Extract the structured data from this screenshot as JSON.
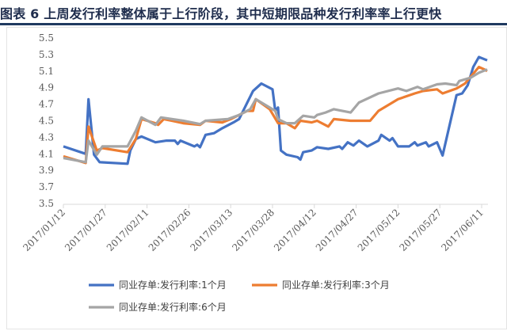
{
  "title": "图表 6 上周发行利率整体属于上行阶段，其中短期限品种发行利率率上行更快",
  "chart_data": {
    "type": "line",
    "title": "图表 6 上周发行利率整体属于上行阶段，其中短期限品种发行利率率上行更快",
    "xlabel": "",
    "ylabel": "",
    "x_unit": "days since 2017/01/12",
    "xlim": [
      0,
      152
    ],
    "ylim": [
      3.5,
      5.5
    ],
    "yticks": [
      "3.5",
      "3.7",
      "3.9",
      "4.1",
      "4.3",
      "4.5",
      "4.7",
      "4.9",
      "5.1",
      "5.3",
      "5.5"
    ],
    "xticks": [
      {
        "day": 0,
        "label": "2017/01/12"
      },
      {
        "day": 15,
        "label": "2017/01/27"
      },
      {
        "day": 30,
        "label": "2017/02/11"
      },
      {
        "day": 45,
        "label": "2017/02/26"
      },
      {
        "day": 60,
        "label": "2017/03/13"
      },
      {
        "day": 75,
        "label": "2017/03/28"
      },
      {
        "day": 90,
        "label": "2017/04/12"
      },
      {
        "day": 105,
        "label": "2017/04/27"
      },
      {
        "day": 120,
        "label": "2017/05/12"
      },
      {
        "day": 135,
        "label": "2017/05/27"
      },
      {
        "day": 150,
        "label": "2017/06/11"
      }
    ],
    "grid": false,
    "legend_position": "bottom",
    "series": [
      {
        "name": "同业存单:发行利率:1个月",
        "color": "#4472c4",
        "points": [
          [
            0,
            4.19
          ],
          [
            8,
            4.1
          ],
          [
            9,
            4.76
          ],
          [
            11,
            4.09
          ],
          [
            13,
            4.0
          ],
          [
            23,
            3.98
          ],
          [
            24,
            4.14
          ],
          [
            26,
            4.28
          ],
          [
            28,
            4.31
          ],
          [
            33,
            4.24
          ],
          [
            37,
            4.26
          ],
          [
            40,
            4.26
          ],
          [
            41,
            4.22
          ],
          [
            42,
            4.26
          ],
          [
            47,
            4.19
          ],
          [
            48,
            4.21
          ],
          [
            49,
            4.18
          ],
          [
            51,
            4.33
          ],
          [
            54,
            4.35
          ],
          [
            57,
            4.41
          ],
          [
            61,
            4.48
          ],
          [
            63,
            4.52
          ],
          [
            68,
            4.86
          ],
          [
            71,
            4.95
          ],
          [
            75,
            4.88
          ],
          [
            76,
            4.62
          ],
          [
            77,
            4.66
          ],
          [
            78,
            4.14
          ],
          [
            80,
            4.09
          ],
          [
            84,
            4.06
          ],
          [
            85,
            4.03
          ],
          [
            86,
            4.12
          ],
          [
            89,
            4.14
          ],
          [
            91,
            4.18
          ],
          [
            95,
            4.16
          ],
          [
            99,
            4.19
          ],
          [
            100,
            4.16
          ],
          [
            102,
            4.24
          ],
          [
            104,
            4.2
          ],
          [
            106,
            4.26
          ],
          [
            109,
            4.19
          ],
          [
            113,
            4.26
          ],
          [
            114,
            4.33
          ],
          [
            117,
            4.26
          ],
          [
            118,
            4.29
          ],
          [
            120,
            4.19
          ],
          [
            124,
            4.19
          ],
          [
            126,
            4.24
          ],
          [
            127,
            4.2
          ],
          [
            130,
            4.24
          ],
          [
            131,
            4.19
          ],
          [
            134,
            4.24
          ],
          [
            136,
            4.08
          ],
          [
            139,
            4.52
          ],
          [
            141,
            4.81
          ],
          [
            143,
            4.83
          ],
          [
            145,
            4.93
          ],
          [
            147,
            5.15
          ],
          [
            149,
            5.27
          ],
          [
            152,
            5.23
          ]
        ]
      },
      {
        "name": "同业存单:发行利率:3个月",
        "color": "#ed7d31",
        "points": [
          [
            0,
            4.07
          ],
          [
            8,
            3.99
          ],
          [
            9,
            4.43
          ],
          [
            12,
            4.14
          ],
          [
            14,
            4.17
          ],
          [
            23,
            4.12
          ],
          [
            26,
            4.28
          ],
          [
            28,
            4.52
          ],
          [
            33,
            4.47
          ],
          [
            34,
            4.45
          ],
          [
            36,
            4.52
          ],
          [
            39,
            4.5
          ],
          [
            43,
            4.47
          ],
          [
            49,
            4.45
          ],
          [
            51,
            4.5
          ],
          [
            57,
            4.48
          ],
          [
            60,
            4.52
          ],
          [
            63,
            4.57
          ],
          [
            66,
            4.62
          ],
          [
            68,
            4.62
          ],
          [
            69,
            4.76
          ],
          [
            74,
            4.64
          ],
          [
            77,
            4.47
          ],
          [
            80,
            4.47
          ],
          [
            83,
            4.41
          ],
          [
            85,
            4.5
          ],
          [
            89,
            4.48
          ],
          [
            91,
            4.5
          ],
          [
            95,
            4.43
          ],
          [
            97,
            4.52
          ],
          [
            103,
            4.5
          ],
          [
            110,
            4.5
          ],
          [
            113,
            4.62
          ],
          [
            120,
            4.76
          ],
          [
            126,
            4.83
          ],
          [
            129,
            4.86
          ],
          [
            134,
            4.88
          ],
          [
            136,
            4.83
          ],
          [
            141,
            4.89
          ],
          [
            144,
            4.95
          ],
          [
            149,
            5.15
          ],
          [
            151,
            5.12
          ],
          [
            152,
            5.1
          ]
        ]
      },
      {
        "name": "同业存单:发行利率:6个月",
        "color": "#a5a5a5",
        "points": [
          [
            0,
            4.05
          ],
          [
            8,
            4.0
          ],
          [
            9,
            4.26
          ],
          [
            12,
            4.09
          ],
          [
            14,
            4.19
          ],
          [
            23,
            4.19
          ],
          [
            26,
            4.38
          ],
          [
            28,
            4.54
          ],
          [
            33,
            4.45
          ],
          [
            35,
            4.54
          ],
          [
            43,
            4.5
          ],
          [
            49,
            4.46
          ],
          [
            51,
            4.5
          ],
          [
            59,
            4.52
          ],
          [
            63,
            4.57
          ],
          [
            67,
            4.64
          ],
          [
            69,
            4.76
          ],
          [
            76,
            4.62
          ],
          [
            77,
            4.52
          ],
          [
            80,
            4.47
          ],
          [
            83,
            4.47
          ],
          [
            86,
            4.56
          ],
          [
            90,
            4.54
          ],
          [
            91,
            4.57
          ],
          [
            94,
            4.6
          ],
          [
            97,
            4.64
          ],
          [
            103,
            4.6
          ],
          [
            106,
            4.72
          ],
          [
            113,
            4.83
          ],
          [
            120,
            4.89
          ],
          [
            123,
            4.86
          ],
          [
            127,
            4.91
          ],
          [
            129,
            4.88
          ],
          [
            134,
            4.94
          ],
          [
            137,
            4.95
          ],
          [
            141,
            4.93
          ],
          [
            142,
            4.98
          ],
          [
            146,
            5.02
          ],
          [
            149,
            5.08
          ],
          [
            152,
            5.12
          ]
        ]
      }
    ]
  }
}
